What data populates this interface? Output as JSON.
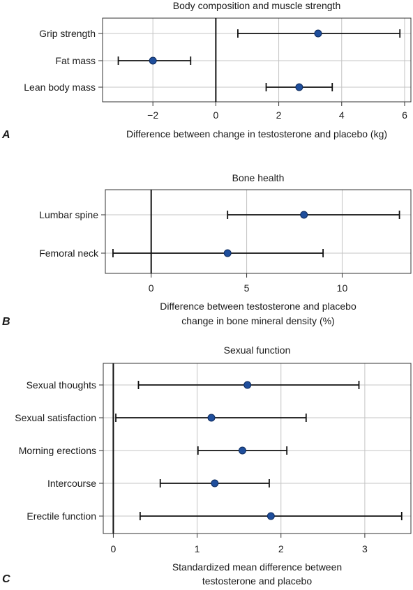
{
  "chart_data": [
    {
      "type": "scatter",
      "subtype": "forest-plot",
      "panel_letter": "A",
      "title": "Body composition and muscle strength",
      "xlabel": [
        "Difference between change in testosterone and placebo (kg)"
      ],
      "xlim": [
        -3.6,
        6.2
      ],
      "ticks": [
        -2,
        0,
        2,
        4,
        6
      ],
      "tick_labels": [
        "−2",
        "0",
        "2",
        "4",
        "6"
      ],
      "reference_line": 0,
      "grid": true,
      "marker_color": "#1f4e9c",
      "rows": [
        {
          "label": "Grip strength",
          "estimate": 3.25,
          "lower": 0.7,
          "upper": 5.85
        },
        {
          "label": "Fat mass",
          "estimate": -2.0,
          "lower": -3.1,
          "upper": -0.8
        },
        {
          "label": "Lean body mass",
          "estimate": 2.65,
          "lower": 1.6,
          "upper": 3.7
        }
      ]
    },
    {
      "type": "scatter",
      "subtype": "forest-plot",
      "panel_letter": "B",
      "title": "Bone health",
      "xlabel": [
        "Difference between testosterone and placebo",
        "change in bone mineral density (%)"
      ],
      "xlim": [
        -2.4,
        13.6
      ],
      "ticks": [
        0,
        5,
        10
      ],
      "tick_labels": [
        "0",
        "5",
        "10"
      ],
      "reference_line": 0,
      "grid": true,
      "marker_color": "#1f4e9c",
      "rows": [
        {
          "label": "Lumbar spine",
          "estimate": 8.0,
          "lower": 4.0,
          "upper": 13.0
        },
        {
          "label": "Femoral neck",
          "estimate": 4.0,
          "lower": -2.0,
          "upper": 9.0
        }
      ]
    },
    {
      "type": "scatter",
      "subtype": "forest-plot",
      "panel_letter": "C",
      "title": "Sexual function",
      "xlabel": [
        "Standardized mean difference between",
        "testosterone and placebo"
      ],
      "xlim": [
        -0.12,
        3.55
      ],
      "ticks": [
        0,
        1,
        2,
        3
      ],
      "tick_labels": [
        "0",
        "1",
        "2",
        "3"
      ],
      "reference_line": 0,
      "grid": true,
      "marker_color": "#1f4e9c",
      "rows": [
        {
          "label": "Sexual thoughts",
          "estimate": 1.6,
          "lower": 0.3,
          "upper": 2.93
        },
        {
          "label": "Sexual satisfaction",
          "estimate": 1.17,
          "lower": 0.03,
          "upper": 2.3
        },
        {
          "label": "Morning erections",
          "estimate": 1.54,
          "lower": 1.01,
          "upper": 2.07
        },
        {
          "label": "Intercourse",
          "estimate": 1.21,
          "lower": 0.56,
          "upper": 1.86
        },
        {
          "label": "Erectile function",
          "estimate": 1.88,
          "lower": 0.32,
          "upper": 3.44
        }
      ]
    }
  ]
}
